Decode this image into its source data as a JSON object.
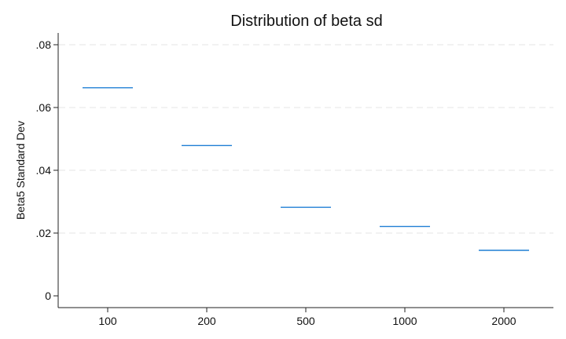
{
  "chart_data": {
    "type": "scatter",
    "marker": "horizontal-dash",
    "title": "Distribution of beta sd",
    "xlabel": "",
    "ylabel": "Beta5 Standard Dev",
    "categories": [
      "100",
      "200",
      "500",
      "1000",
      "2000"
    ],
    "values": [
      0.0663,
      0.0479,
      0.0282,
      0.0221,
      0.0145
    ],
    "ylim": [
      0,
      0.08
    ],
    "yticks": [
      0,
      0.02,
      0.04,
      0.06,
      0.08
    ],
    "ytick_labels": [
      "0",
      ".02",
      ".04",
      ".06",
      ".08"
    ],
    "grid": true,
    "legend": "none",
    "colors": {
      "series": "#1f7fd4",
      "axis": "#222222",
      "grid": "#e6e6e6"
    }
  }
}
